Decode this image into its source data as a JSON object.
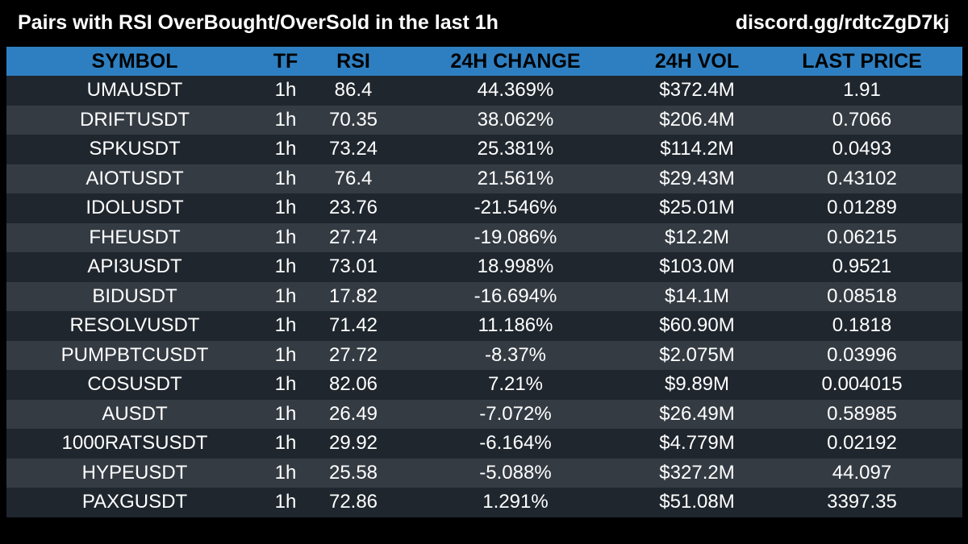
{
  "header": {
    "title": "Pairs with RSI OverBought/OverSold in the last 1h",
    "link": "discord.gg/rdtcZgD7kj"
  },
  "table": {
    "columns": [
      "SYMBOL",
      "TF",
      "RSI",
      "24H CHANGE",
      "24H VOL",
      "LAST PRICE"
    ],
    "rows": [
      [
        "UMAUSDT",
        "1h",
        "86.4",
        "44.369%",
        "$372.4M",
        "1.91"
      ],
      [
        "DRIFTUSDT",
        "1h",
        "70.35",
        "38.062%",
        "$206.4M",
        "0.7066"
      ],
      [
        "SPKUSDT",
        "1h",
        "73.24",
        "25.381%",
        "$114.2M",
        "0.0493"
      ],
      [
        "AIOTUSDT",
        "1h",
        "76.4",
        "21.561%",
        "$29.43M",
        "0.43102"
      ],
      [
        "IDOLUSDT",
        "1h",
        "23.76",
        "-21.546%",
        "$25.01M",
        "0.01289"
      ],
      [
        "FHEUSDT",
        "1h",
        "27.74",
        "-19.086%",
        "$12.2M",
        "0.06215"
      ],
      [
        "API3USDT",
        "1h",
        "73.01",
        "18.998%",
        "$103.0M",
        "0.9521"
      ],
      [
        "BIDUSDT",
        "1h",
        "17.82",
        "-16.694%",
        "$14.1M",
        "0.08518"
      ],
      [
        "RESOLVUSDT",
        "1h",
        "71.42",
        "11.186%",
        "$60.90M",
        "0.1818"
      ],
      [
        "PUMPBTCUSDT",
        "1h",
        "27.72",
        "-8.37%",
        "$2.075M",
        "0.03996"
      ],
      [
        "COSUSDT",
        "1h",
        "82.06",
        "7.21%",
        "$9.89M",
        "0.004015"
      ],
      [
        "AUSDT",
        "1h",
        "26.49",
        "-7.072%",
        "$26.49M",
        "0.58985"
      ],
      [
        "1000RATSUSDT",
        "1h",
        "29.92",
        "-6.164%",
        "$4.779M",
        "0.02192"
      ],
      [
        "HYPEUSDT",
        "1h",
        "25.58",
        "-5.088%",
        "$327.2M",
        "44.097"
      ],
      [
        "PAXGUSDT",
        "1h",
        "72.86",
        "1.291%",
        "$51.08M",
        "3397.35"
      ]
    ]
  },
  "colors": {
    "background": "#000000",
    "header_row": "#2e7fc1",
    "row_dark": "#1f262e",
    "row_light": "#343b43",
    "text": "#ffffff",
    "header_text": "#000000"
  }
}
